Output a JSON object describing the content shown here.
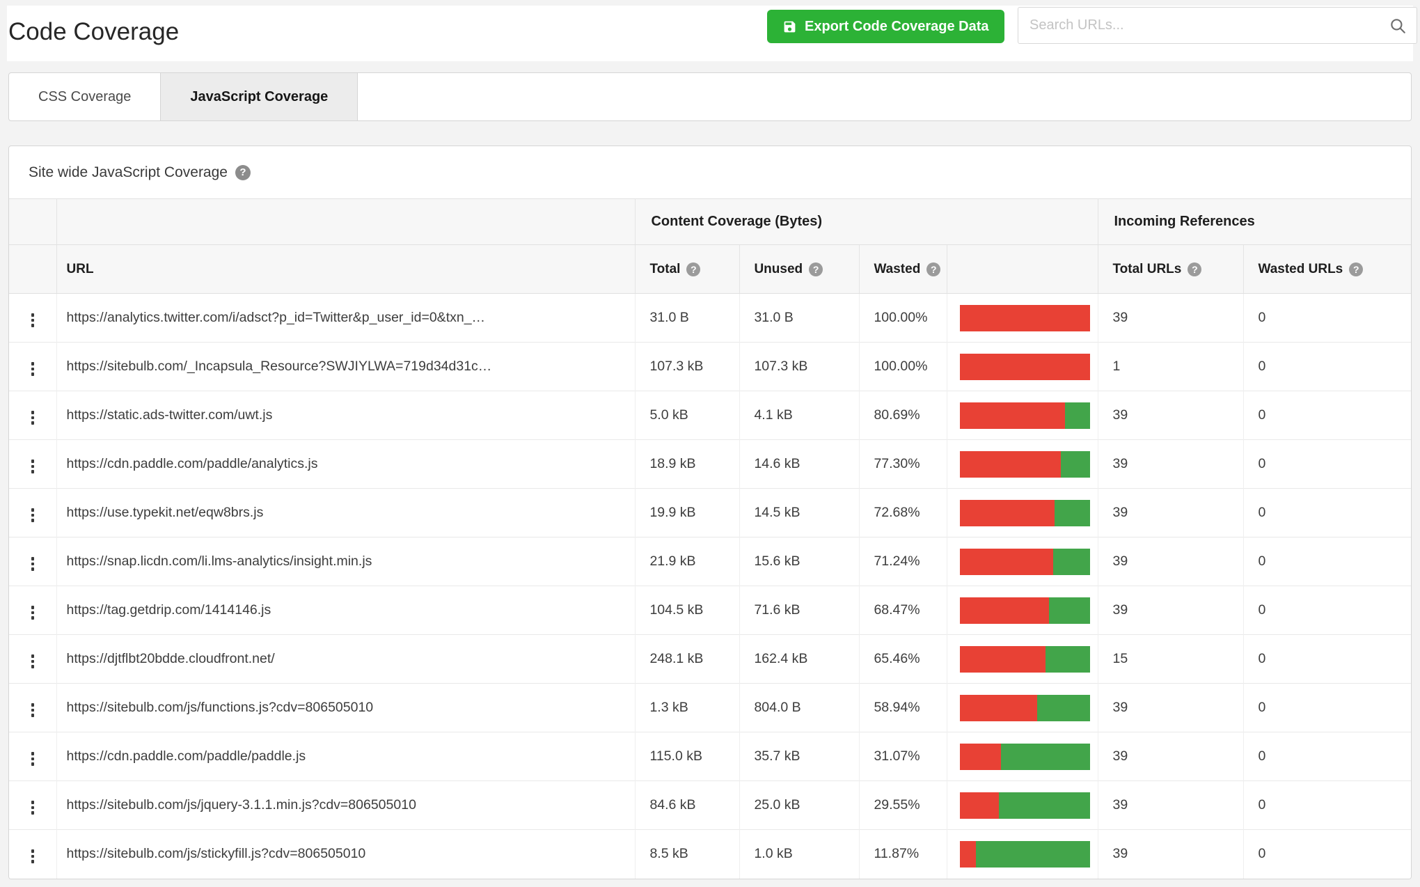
{
  "page": {
    "title": "Code Coverage"
  },
  "toolbar": {
    "export_label": "Export Code Coverage Data",
    "export_icon": "save-floppy-icon",
    "search_placeholder": "Search URLs...",
    "search_icon": "magnifier-icon"
  },
  "tabs": [
    {
      "label": "CSS Coverage",
      "active": false
    },
    {
      "label": "JavaScript Coverage",
      "active": true
    }
  ],
  "panel": {
    "title": "Site wide JavaScript Coverage",
    "help_icon": "question-mark-icon"
  },
  "icons": {
    "question_mark": "?"
  },
  "colors": {
    "accent_green": "#2cb236",
    "bar_red": "#e84135",
    "bar_green": "#42a54a",
    "header_row_bg": "#f7f7f7"
  },
  "table": {
    "group_headers": [
      {
        "label": "Content Coverage (Bytes)"
      },
      {
        "label": "Incoming References"
      }
    ],
    "columns": [
      "URL",
      "Total",
      "Unused",
      "Wasted",
      "Total URLs",
      "Wasted URLs"
    ],
    "rows": [
      {
        "url": "https://analytics.twitter.com/i/adsct?p_id=Twitter&p_user_id=0&txn_…",
        "total": "31.0 B",
        "unused": "31.0 B",
        "wasted_pct": "100.00%",
        "wasted_value": 100,
        "total_urls": "39",
        "wasted_urls": "0"
      },
      {
        "url": "https://sitebulb.com/_Incapsula_Resource?SWJIYLWA=719d34d31c…",
        "total": "107.3 kB",
        "unused": "107.3 kB",
        "wasted_pct": "100.00%",
        "wasted_value": 100,
        "total_urls": "1",
        "wasted_urls": "0"
      },
      {
        "url": "https://static.ads-twitter.com/uwt.js",
        "total": "5.0 kB",
        "unused": "4.1 kB",
        "wasted_pct": "80.69%",
        "wasted_value": 80.69,
        "total_urls": "39",
        "wasted_urls": "0"
      },
      {
        "url": "https://cdn.paddle.com/paddle/analytics.js",
        "total": "18.9 kB",
        "unused": "14.6 kB",
        "wasted_pct": "77.30%",
        "wasted_value": 77.3,
        "total_urls": "39",
        "wasted_urls": "0"
      },
      {
        "url": "https://use.typekit.net/eqw8brs.js",
        "total": "19.9 kB",
        "unused": "14.5 kB",
        "wasted_pct": "72.68%",
        "wasted_value": 72.68,
        "total_urls": "39",
        "wasted_urls": "0"
      },
      {
        "url": "https://snap.licdn.com/li.lms-analytics/insight.min.js",
        "total": "21.9 kB",
        "unused": "15.6 kB",
        "wasted_pct": "71.24%",
        "wasted_value": 71.24,
        "total_urls": "39",
        "wasted_urls": "0"
      },
      {
        "url": "https://tag.getdrip.com/1414146.js",
        "total": "104.5 kB",
        "unused": "71.6 kB",
        "wasted_pct": "68.47%",
        "wasted_value": 68.47,
        "total_urls": "39",
        "wasted_urls": "0"
      },
      {
        "url": "https://djtflbt20bdde.cloudfront.net/",
        "total": "248.1 kB",
        "unused": "162.4 kB",
        "wasted_pct": "65.46%",
        "wasted_value": 65.46,
        "total_urls": "15",
        "wasted_urls": "0"
      },
      {
        "url": "https://sitebulb.com/js/functions.js?cdv=806505010",
        "total": "1.3 kB",
        "unused": "804.0 B",
        "wasted_pct": "58.94%",
        "wasted_value": 58.94,
        "total_urls": "39",
        "wasted_urls": "0"
      },
      {
        "url": "https://cdn.paddle.com/paddle/paddle.js",
        "total": "115.0 kB",
        "unused": "35.7 kB",
        "wasted_pct": "31.07%",
        "wasted_value": 31.07,
        "total_urls": "39",
        "wasted_urls": "0"
      },
      {
        "url": "https://sitebulb.com/js/jquery-3.1.1.min.js?cdv=806505010",
        "total": "84.6 kB",
        "unused": "25.0 kB",
        "wasted_pct": "29.55%",
        "wasted_value": 29.55,
        "total_urls": "39",
        "wasted_urls": "0"
      },
      {
        "url": "https://sitebulb.com/js/stickyfill.js?cdv=806505010",
        "total": "8.5 kB",
        "unused": "1.0 kB",
        "wasted_pct": "11.87%",
        "wasted_value": 11.87,
        "total_urls": "39",
        "wasted_urls": "0"
      }
    ]
  }
}
